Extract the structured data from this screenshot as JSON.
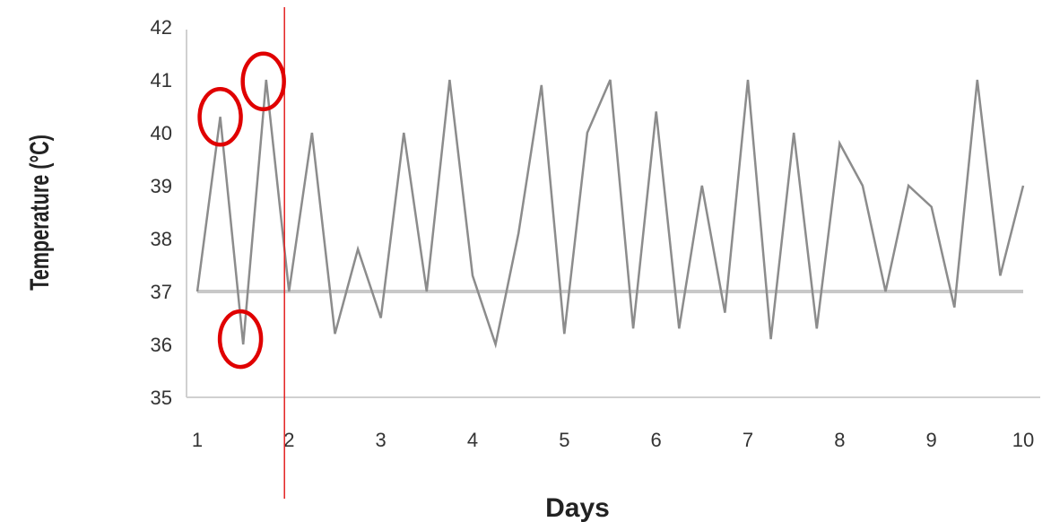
{
  "chart_data": {
    "type": "line",
    "xlabel": "Days",
    "ylabel": "Temperature (°C)",
    "xlim": [
      1,
      10
    ],
    "ylim": [
      35,
      42
    ],
    "x_ticks": [
      "1",
      "2",
      "3",
      "4",
      "5",
      "6",
      "7",
      "8",
      "9",
      "10"
    ],
    "y_ticks": [
      "35",
      "36",
      "37",
      "38",
      "39",
      "40",
      "41",
      "42"
    ],
    "grid": false,
    "series": [
      {
        "color": "#8c8c8c",
        "x": [
          1,
          1.25,
          1.5,
          1.75,
          2,
          2.25,
          2.5,
          2.75,
          3,
          3.25,
          3.5,
          3.75,
          4,
          4.25,
          4.5,
          4.75,
          5,
          5.25,
          5.5,
          5.75,
          6,
          6.25,
          6.5,
          6.75,
          7,
          7.25,
          7.5,
          7.75,
          8,
          8.25,
          8.5,
          8.75,
          9,
          9.25,
          9.5,
          9.75,
          10
        ],
        "values": [
          37.0,
          40.3,
          36.0,
          41.0,
          37.0,
          40.0,
          36.2,
          37.8,
          36.5,
          40.0,
          37.0,
          41.0,
          37.3,
          36.0,
          38.1,
          40.9,
          36.2,
          40.0,
          41.0,
          36.3,
          40.4,
          36.3,
          39.0,
          36.6,
          41.0,
          36.1,
          40.0,
          36.3,
          39.8,
          39.0,
          37.0,
          39.0,
          38.6,
          36.7,
          41.0,
          37.3,
          39.0
        ]
      },
      {
        "color": "#c8c8c8",
        "x": [
          1,
          10
        ],
        "values": [
          37,
          37
        ]
      }
    ],
    "annotations": {
      "vertical_line": {
        "x": 1.95,
        "color": "#e32222"
      },
      "circles": [
        {
          "x": 1.25,
          "y": 40.3,
          "color": "#e00000"
        },
        {
          "x": 1.47,
          "y": 36.1,
          "color": "#e00000"
        },
        {
          "x": 1.72,
          "y": 40.97,
          "color": "#e00000"
        }
      ]
    }
  }
}
